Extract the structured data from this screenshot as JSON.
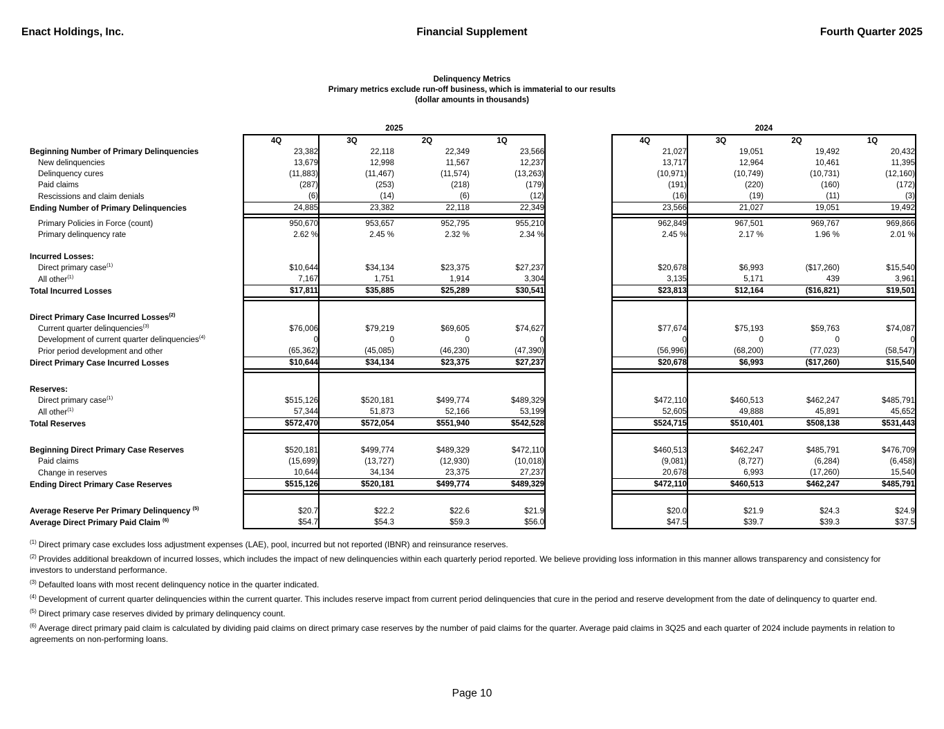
{
  "header": {
    "company": "Enact Holdings, Inc.",
    "title": "Financial Supplement",
    "period": "Fourth Quarter 2025"
  },
  "title_block": {
    "line1": "Delinquency Metrics",
    "line2": "Primary metrics exclude run-off business, which is immaterial to our results",
    "line3": "(dollar amounts in thousands)"
  },
  "table": {
    "year_groups": [
      "2025",
      "2024"
    ],
    "quarter_headers": [
      "4Q",
      "3Q",
      "2Q",
      "1Q"
    ],
    "rows": [
      {
        "kind": "qhead"
      },
      {
        "kind": "data",
        "label": "Beginning Number of Primary Delinquencies",
        "bold_label": true,
        "v2025": [
          "23,382",
          "22,118",
          "22,349",
          "23,566"
        ],
        "v2024": [
          "21,027",
          "19,051",
          "19,492",
          "20,432"
        ]
      },
      {
        "kind": "data",
        "label": "New delinquencies",
        "indent": true,
        "v2025": [
          "13,679",
          "12,998",
          "11,567",
          "12,237"
        ],
        "v2024": [
          "13,717",
          "12,964",
          "10,461",
          "11,395"
        ]
      },
      {
        "kind": "data",
        "label": "Delinquency cures",
        "indent": true,
        "v2025": [
          "(11,883)",
          "(11,467)",
          "(11,574)",
          "(13,263)"
        ],
        "v2024": [
          "(10,971)",
          "(10,749)",
          "(10,731)",
          "(12,160)"
        ]
      },
      {
        "kind": "data",
        "label": "Paid claims",
        "indent": true,
        "v2025": [
          "(287)",
          "(253)",
          "(218)",
          "(179)"
        ],
        "v2024": [
          "(191)",
          "(220)",
          "(160)",
          "(172)"
        ]
      },
      {
        "kind": "data",
        "label": "Rescissions and claim denials",
        "indent": true,
        "v2025": [
          "(6)",
          "(14)",
          "(6)",
          "(12)"
        ],
        "v2024": [
          "(16)",
          "(19)",
          "(11)",
          "(3)"
        ]
      },
      {
        "kind": "total",
        "label": "Ending Number of Primary Delinquencies",
        "bold_label": true,
        "bold_values": false,
        "v2025": [
          "24,885",
          "23,382",
          "22,118",
          "22,349"
        ],
        "v2024": [
          "23,566",
          "21,027",
          "19,051",
          "19,492"
        ]
      },
      {
        "kind": "data",
        "label": "Primary Policies in Force (count)",
        "indent": true,
        "v2025": [
          "950,670",
          "953,657",
          "952,795",
          "955,210"
        ],
        "v2024": [
          "962,849",
          "967,501",
          "969,767",
          "969,866"
        ]
      },
      {
        "kind": "data",
        "label": "Primary delinquency rate",
        "indent": true,
        "v2025": [
          "2.62 %",
          "2.45 %",
          "2.32 %",
          "2.34 %"
        ],
        "v2024": [
          "2.45 %",
          "2.17 %",
          "1.96 %",
          "2.01 %"
        ]
      },
      {
        "kind": "blank"
      },
      {
        "kind": "heading",
        "label": "Incurred Losses:",
        "bold_label": true
      },
      {
        "kind": "data",
        "label": "Direct primary case",
        "sup": "(1)",
        "indent": true,
        "v2025": [
          "$10,644",
          "$34,134",
          "$23,375",
          "$27,237"
        ],
        "v2024": [
          "$20,678",
          "$6,993",
          "($17,260)",
          "$15,540"
        ]
      },
      {
        "kind": "data",
        "label": "All other",
        "sup": "(1)",
        "indent": true,
        "v2025": [
          "7,167",
          "1,751",
          "1,914",
          "3,304"
        ],
        "v2024": [
          "3,135",
          "5,171",
          "439",
          "3,961"
        ]
      },
      {
        "kind": "total",
        "label": "Total Incurred Losses",
        "bold_label": true,
        "bold_values": true,
        "v2025": [
          "$17,811",
          "$35,885",
          "$25,289",
          "$30,541"
        ],
        "v2024": [
          "$23,813",
          "$12,164",
          "($16,821)",
          "$19,501"
        ]
      },
      {
        "kind": "blank"
      },
      {
        "kind": "heading",
        "label": "Direct Primary Case Incurred Losses",
        "sup": "(2)",
        "bold_label": true
      },
      {
        "kind": "data",
        "label": "Current quarter delinquencies",
        "sup": "(3)",
        "indent": true,
        "v2025": [
          "$76,006",
          "$79,219",
          "$69,605",
          "$74,627"
        ],
        "v2024": [
          "$77,674",
          "$75,193",
          "$59,763",
          "$74,087"
        ]
      },
      {
        "kind": "data",
        "label": "Development of current quarter delinquencies",
        "sup": "(4)",
        "indent": true,
        "v2025": [
          "0",
          "0",
          "0",
          "0"
        ],
        "v2024": [
          "0",
          "0",
          "0",
          "0"
        ]
      },
      {
        "kind": "data",
        "label": "Prior period development and other",
        "indent": true,
        "v2025": [
          "(65,362)",
          "(45,085)",
          "(46,230)",
          "(47,390)"
        ],
        "v2024": [
          "(56,996)",
          "(68,200)",
          "(77,023)",
          "(58,547)"
        ]
      },
      {
        "kind": "total",
        "label": "Direct Primary Case Incurred Losses",
        "bold_label": true,
        "bold_values": true,
        "v2025": [
          "$10,644",
          "$34,134",
          "$23,375",
          "$27,237"
        ],
        "v2024": [
          "$20,678",
          "$6,993",
          "($17,260)",
          "$15,540"
        ]
      },
      {
        "kind": "blank"
      },
      {
        "kind": "heading",
        "label": "Reserves:",
        "bold_label": true
      },
      {
        "kind": "data",
        "label": "Direct primary case",
        "sup": "(1)",
        "indent": true,
        "v2025": [
          "$515,126",
          "$520,181",
          "$499,774",
          "$489,329"
        ],
        "v2024": [
          "$472,110",
          "$460,513",
          "$462,247",
          "$485,791"
        ]
      },
      {
        "kind": "data",
        "label": "All other",
        "sup": "(1)",
        "indent": true,
        "v2025": [
          "57,344",
          "51,873",
          "52,166",
          "53,199"
        ],
        "v2024": [
          "52,605",
          "49,888",
          "45,891",
          "45,652"
        ]
      },
      {
        "kind": "total",
        "label": "Total Reserves",
        "bold_label": true,
        "bold_values": true,
        "v2025": [
          "$572,470",
          "$572,054",
          "$551,940",
          "$542,528"
        ],
        "v2024": [
          "$524,715",
          "$510,401",
          "$508,138",
          "$531,443"
        ]
      },
      {
        "kind": "blank"
      },
      {
        "kind": "data",
        "label": "Beginning Direct Primary Case Reserves",
        "bold_label": true,
        "v2025": [
          "$520,181",
          "$499,774",
          "$489,329",
          "$472,110"
        ],
        "v2024": [
          "$460,513",
          "$462,247",
          "$485,791",
          "$476,709"
        ]
      },
      {
        "kind": "data",
        "label": "Paid claims",
        "indent": true,
        "v2025": [
          "(15,699)",
          "(13,727)",
          "(12,930)",
          "(10,018)"
        ],
        "v2024": [
          "(9,081)",
          "(8,727)",
          "(6,284)",
          "(6,458)"
        ]
      },
      {
        "kind": "data",
        "label": "Change in reserves",
        "indent": true,
        "v2025": [
          "10,644",
          "34,134",
          "23,375",
          "27,237"
        ],
        "v2024": [
          "20,678",
          "6,993",
          "(17,260)",
          "15,540"
        ]
      },
      {
        "kind": "total",
        "label": "Ending Direct Primary Case Reserves",
        "bold_label": true,
        "bold_values": true,
        "v2025": [
          "$515,126",
          "$520,181",
          "$499,774",
          "$489,329"
        ],
        "v2024": [
          "$472,110",
          "$460,513",
          "$462,247",
          "$485,791"
        ]
      },
      {
        "kind": "blank"
      },
      {
        "kind": "data",
        "label": "Average Reserve Per Primary Delinquency",
        "sup": "(5)",
        "sup_space": true,
        "bold_label": true,
        "v2025": [
          "$20.7",
          "$22.2",
          "$22.6",
          "$21.9"
        ],
        "v2024": [
          "$20.0",
          "$21.9",
          "$24.3",
          "$24.9"
        ]
      },
      {
        "kind": "data",
        "label": "Average Direct Primary Paid Claim",
        "sup": "(6)",
        "sup_space": true,
        "bold_label": true,
        "v2025": [
          "$54.7",
          "$54.3",
          "$59.3",
          "$56.0"
        ],
        "v2024": [
          "$47.5",
          "$39.7",
          "$39.3",
          "$37.5"
        ]
      }
    ]
  },
  "footnotes": [
    {
      "marker": "(1)",
      "text": "Direct primary case excludes loss adjustment expenses (LAE), pool, incurred but not reported (IBNR) and reinsurance reserves."
    },
    {
      "marker": "(2)",
      "text": "Provides additional breakdown of incurred losses, which includes the impact of new delinquencies within each quarterly period reported. We believe providing loss information in this manner allows transparency and consistency for investors to understand performance."
    },
    {
      "marker": "(3)",
      "text": "Defaulted loans with most recent delinquency notice in the quarter indicated."
    },
    {
      "marker": "(4)",
      "text": "Development of current quarter delinquencies within the current quarter.  This includes reserve impact from current period delinquencies that cure in the period and reserve development from the date of delinquency to quarter end."
    },
    {
      "marker": "(5)",
      "text": "Direct primary case reserves divided by primary delinquency count."
    },
    {
      "marker": "(6)",
      "text": "Average direct primary paid claim is calculated by dividing paid claims on direct primary case reserves by the number of paid claims for the quarter. Average paid claims in 3Q25 and each quarter of 2024 include payments in relation to agreements on non-performing loans."
    }
  ],
  "page_number": "Page 10"
}
